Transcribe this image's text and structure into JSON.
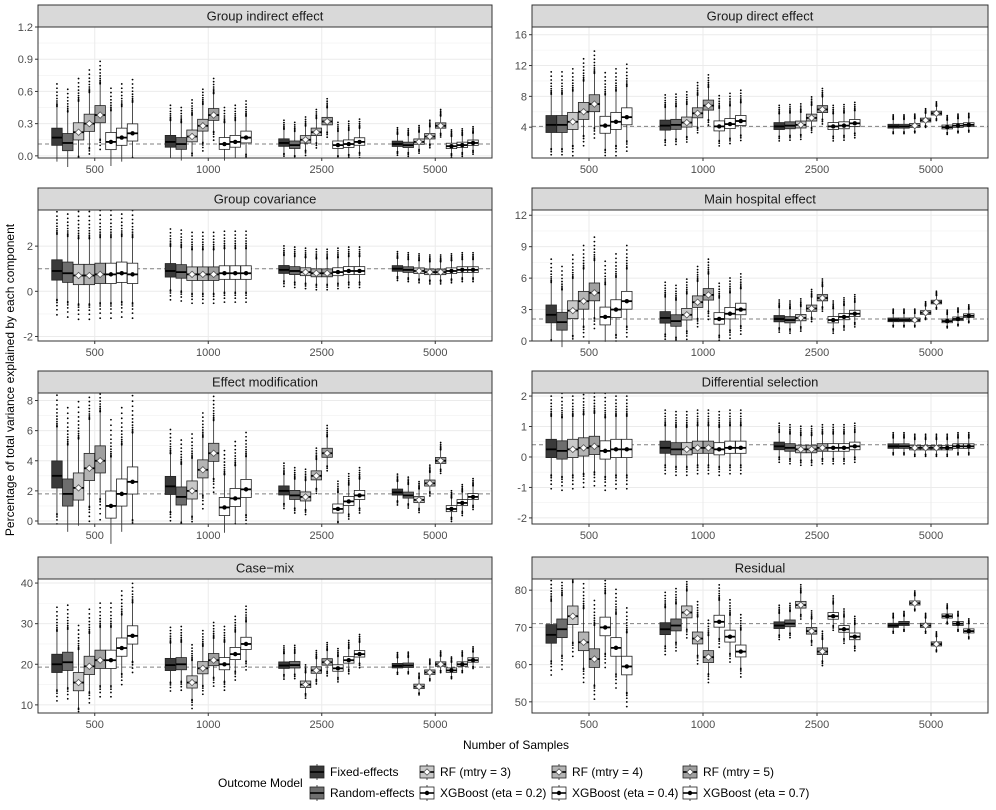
{
  "chart_data": {
    "type": "boxplot",
    "xlabel": "Number of Samples",
    "ylabel": "Percentage of total variance explained by each component",
    "categories": [
      "500",
      "1000",
      "2500",
      "5000"
    ],
    "legend": {
      "title": "Outcome Model",
      "placement": "bottom",
      "entries": [
        {
          "name": "Fixed-effects",
          "fill": "#3a3a3a",
          "mean_marker": "none"
        },
        {
          "name": "Random-effects",
          "fill": "#6e6e6e",
          "mean_marker": "none"
        },
        {
          "name": "RF (mtry = 3)",
          "fill": "#c8c8c8",
          "mean_marker": "diamond"
        },
        {
          "name": "RF (mtry = 4)",
          "fill": "#b4b4b4",
          "mean_marker": "diamond"
        },
        {
          "name": "RF (mtry = 5)",
          "fill": "#a0a0a0",
          "mean_marker": "diamond"
        },
        {
          "name": "XGBoost (eta = 0.2)",
          "fill": "#ffffff",
          "mean_marker": "dot"
        },
        {
          "name": "XGBoost (eta = 0.4)",
          "fill": "#ffffff",
          "mean_marker": "dot"
        },
        {
          "name": "XGBoost (eta = 0.7)",
          "fill": "#ffffff",
          "mean_marker": "dot"
        }
      ]
    },
    "grid": true,
    "panels": [
      {
        "title": "Group indirect effect",
        "ylim": [
          -0.02,
          1.2
        ],
        "yticks": [
          "0.0",
          "0.3",
          "0.6",
          "0.9",
          "1.2"
        ],
        "ytick_values": [
          0,
          0.3,
          0.6,
          0.9,
          1.2
        ],
        "reference": 0.11,
        "medians": [
          [
            0.17,
            0.12,
            0.22,
            0.3,
            0.38,
            0.13,
            0.17,
            0.21
          ],
          [
            0.13,
            0.11,
            0.18,
            0.28,
            0.38,
            0.11,
            0.13,
            0.17
          ],
          [
            0.12,
            0.1,
            0.15,
            0.22,
            0.32,
            0.1,
            0.11,
            0.13
          ],
          [
            0.11,
            0.1,
            0.13,
            0.18,
            0.28,
            0.09,
            0.1,
            0.12
          ]
        ],
        "spreads": [
          0.16,
          0.11,
          0.07,
          0.05
        ]
      },
      {
        "title": "Group direct effect",
        "ylim": [
          0,
          17
        ],
        "yticks": [
          "4",
          "8",
          "12",
          "16"
        ],
        "ytick_values": [
          4,
          8,
          12,
          16
        ],
        "reference": 4.1,
        "medians": [
          [
            4.3,
            4.3,
            4.7,
            6.0,
            7.0,
            4.2,
            4.7,
            5.3
          ],
          [
            4.2,
            4.3,
            4.6,
            5.8,
            6.8,
            4.1,
            4.4,
            4.8
          ],
          [
            4.1,
            4.2,
            4.3,
            5.2,
            6.3,
            4.1,
            4.2,
            4.5
          ],
          [
            4.1,
            4.1,
            4.2,
            4.9,
            5.8,
            4.0,
            4.2,
            4.3
          ]
        ],
        "spreads": [
          2.2,
          1.3,
          0.9,
          0.5
        ]
      },
      {
        "title": "Group covariance",
        "ylim": [
          -2.2,
          3.6
        ],
        "yticks": [
          "-2",
          "0",
          "2"
        ],
        "ytick_values": [
          -2,
          0,
          2
        ],
        "reference": 1.0,
        "medians": [
          [
            0.9,
            0.8,
            0.7,
            0.7,
            0.75,
            0.75,
            0.8,
            0.75
          ],
          [
            0.9,
            0.85,
            0.75,
            0.75,
            0.75,
            0.8,
            0.8,
            0.8
          ],
          [
            0.95,
            0.9,
            0.85,
            0.8,
            0.8,
            0.85,
            0.9,
            0.9
          ],
          [
            1.0,
            0.95,
            0.9,
            0.85,
            0.85,
            0.9,
            0.95,
            0.95
          ]
        ],
        "spreads": [
          0.9,
          0.6,
          0.35,
          0.25
        ]
      },
      {
        "title": "Main hospital effect",
        "ylim": [
          0,
          12.5
        ],
        "yticks": [
          "0",
          "3",
          "6",
          "9",
          "12"
        ],
        "ytick_values": [
          0,
          3,
          6,
          9,
          12
        ],
        "reference": 2.1,
        "medians": [
          [
            2.5,
            1.8,
            2.9,
            3.8,
            4.6,
            2.3,
            3.0,
            3.8
          ],
          [
            2.2,
            1.9,
            2.5,
            3.7,
            4.4,
            2.1,
            2.6,
            3.0
          ],
          [
            2.1,
            2.0,
            2.2,
            3.1,
            4.1,
            2.0,
            2.3,
            2.6
          ],
          [
            2.0,
            2.0,
            2.0,
            2.7,
            3.7,
            1.9,
            2.1,
            2.4
          ]
        ],
        "spreads": [
          1.7,
          1.1,
          0.6,
          0.35
        ]
      },
      {
        "title": "Effect modification",
        "ylim": [
          -0.2,
          8.5
        ],
        "yticks": [
          "0",
          "2",
          "4",
          "6",
          "8"
        ],
        "ytick_values": [
          0,
          2,
          4,
          6,
          8
        ],
        "reference": 1.8,
        "medians": [
          [
            3.0,
            1.8,
            2.2,
            3.5,
            4.0,
            1.0,
            1.8,
            2.6
          ],
          [
            2.3,
            1.6,
            2.0,
            3.4,
            4.5,
            0.9,
            1.5,
            2.1
          ],
          [
            2.0,
            1.7,
            1.6,
            3.0,
            4.5,
            0.8,
            1.3,
            1.7
          ],
          [
            1.9,
            1.7,
            1.4,
            2.5,
            4.0,
            0.8,
            1.2,
            1.6
          ]
        ],
        "spreads": [
          1.8,
          1.2,
          0.6,
          0.4
        ]
      },
      {
        "title": "Differential selection",
        "ylim": [
          -2.2,
          2.1
        ],
        "yticks": [
          "-2",
          "-1",
          "0",
          "1",
          "2"
        ],
        "ytick_values": [
          -2,
          -1,
          0,
          1,
          2
        ],
        "reference": 0.4,
        "medians": [
          [
            0.25,
            0.2,
            0.25,
            0.3,
            0.35,
            0.2,
            0.25,
            0.25
          ],
          [
            0.3,
            0.25,
            0.25,
            0.3,
            0.3,
            0.25,
            0.3,
            0.3
          ],
          [
            0.35,
            0.3,
            0.25,
            0.25,
            0.3,
            0.3,
            0.3,
            0.35
          ],
          [
            0.35,
            0.35,
            0.3,
            0.3,
            0.3,
            0.3,
            0.35,
            0.35
          ]
        ],
        "spreads": [
          0.6,
          0.4,
          0.25,
          0.15
        ]
      },
      {
        "title": "Case−mix",
        "ylim": [
          8,
          41
        ],
        "yticks": [
          "10",
          "20",
          "30",
          "40"
        ],
        "ytick_values": [
          10,
          20,
          30,
          40
        ],
        "reference": 19.3,
        "medians": [
          [
            20.0,
            20.5,
            15.5,
            19.5,
            21.0,
            21.0,
            24.0,
            27.0
          ],
          [
            19.8,
            20.0,
            15.5,
            19.0,
            21.0,
            20.0,
            22.5,
            25.0
          ],
          [
            19.7,
            19.8,
            15.0,
            18.5,
            20.5,
            19.0,
            21.0,
            22.5
          ],
          [
            19.6,
            19.7,
            14.5,
            18.0,
            20.0,
            18.5,
            20.0,
            21.0
          ]
        ],
        "spreads": [
          4.5,
          3.0,
          1.6,
          1.1
        ]
      },
      {
        "title": "Residual",
        "ylim": [
          47,
          83
        ],
        "yticks": [
          "50",
          "60",
          "70",
          "80"
        ],
        "ytick_values": [
          50,
          60,
          70,
          80
        ],
        "reference": 71.0,
        "medians": [
          [
            68.0,
            69.5,
            73.0,
            66.0,
            61.5,
            70.0,
            64.5,
            59.5
          ],
          [
            69.5,
            70.5,
            74.0,
            67.0,
            62.0,
            71.5,
            67.5,
            63.5
          ],
          [
            70.5,
            71.0,
            76.0,
            69.0,
            63.5,
            73.0,
            69.5,
            67.5
          ],
          [
            70.5,
            71.0,
            76.5,
            70.5,
            65.5,
            73.0,
            71.0,
            69.0
          ]
        ],
        "spreads": [
          5.0,
          3.2,
          1.8,
          1.1
        ]
      }
    ]
  }
}
